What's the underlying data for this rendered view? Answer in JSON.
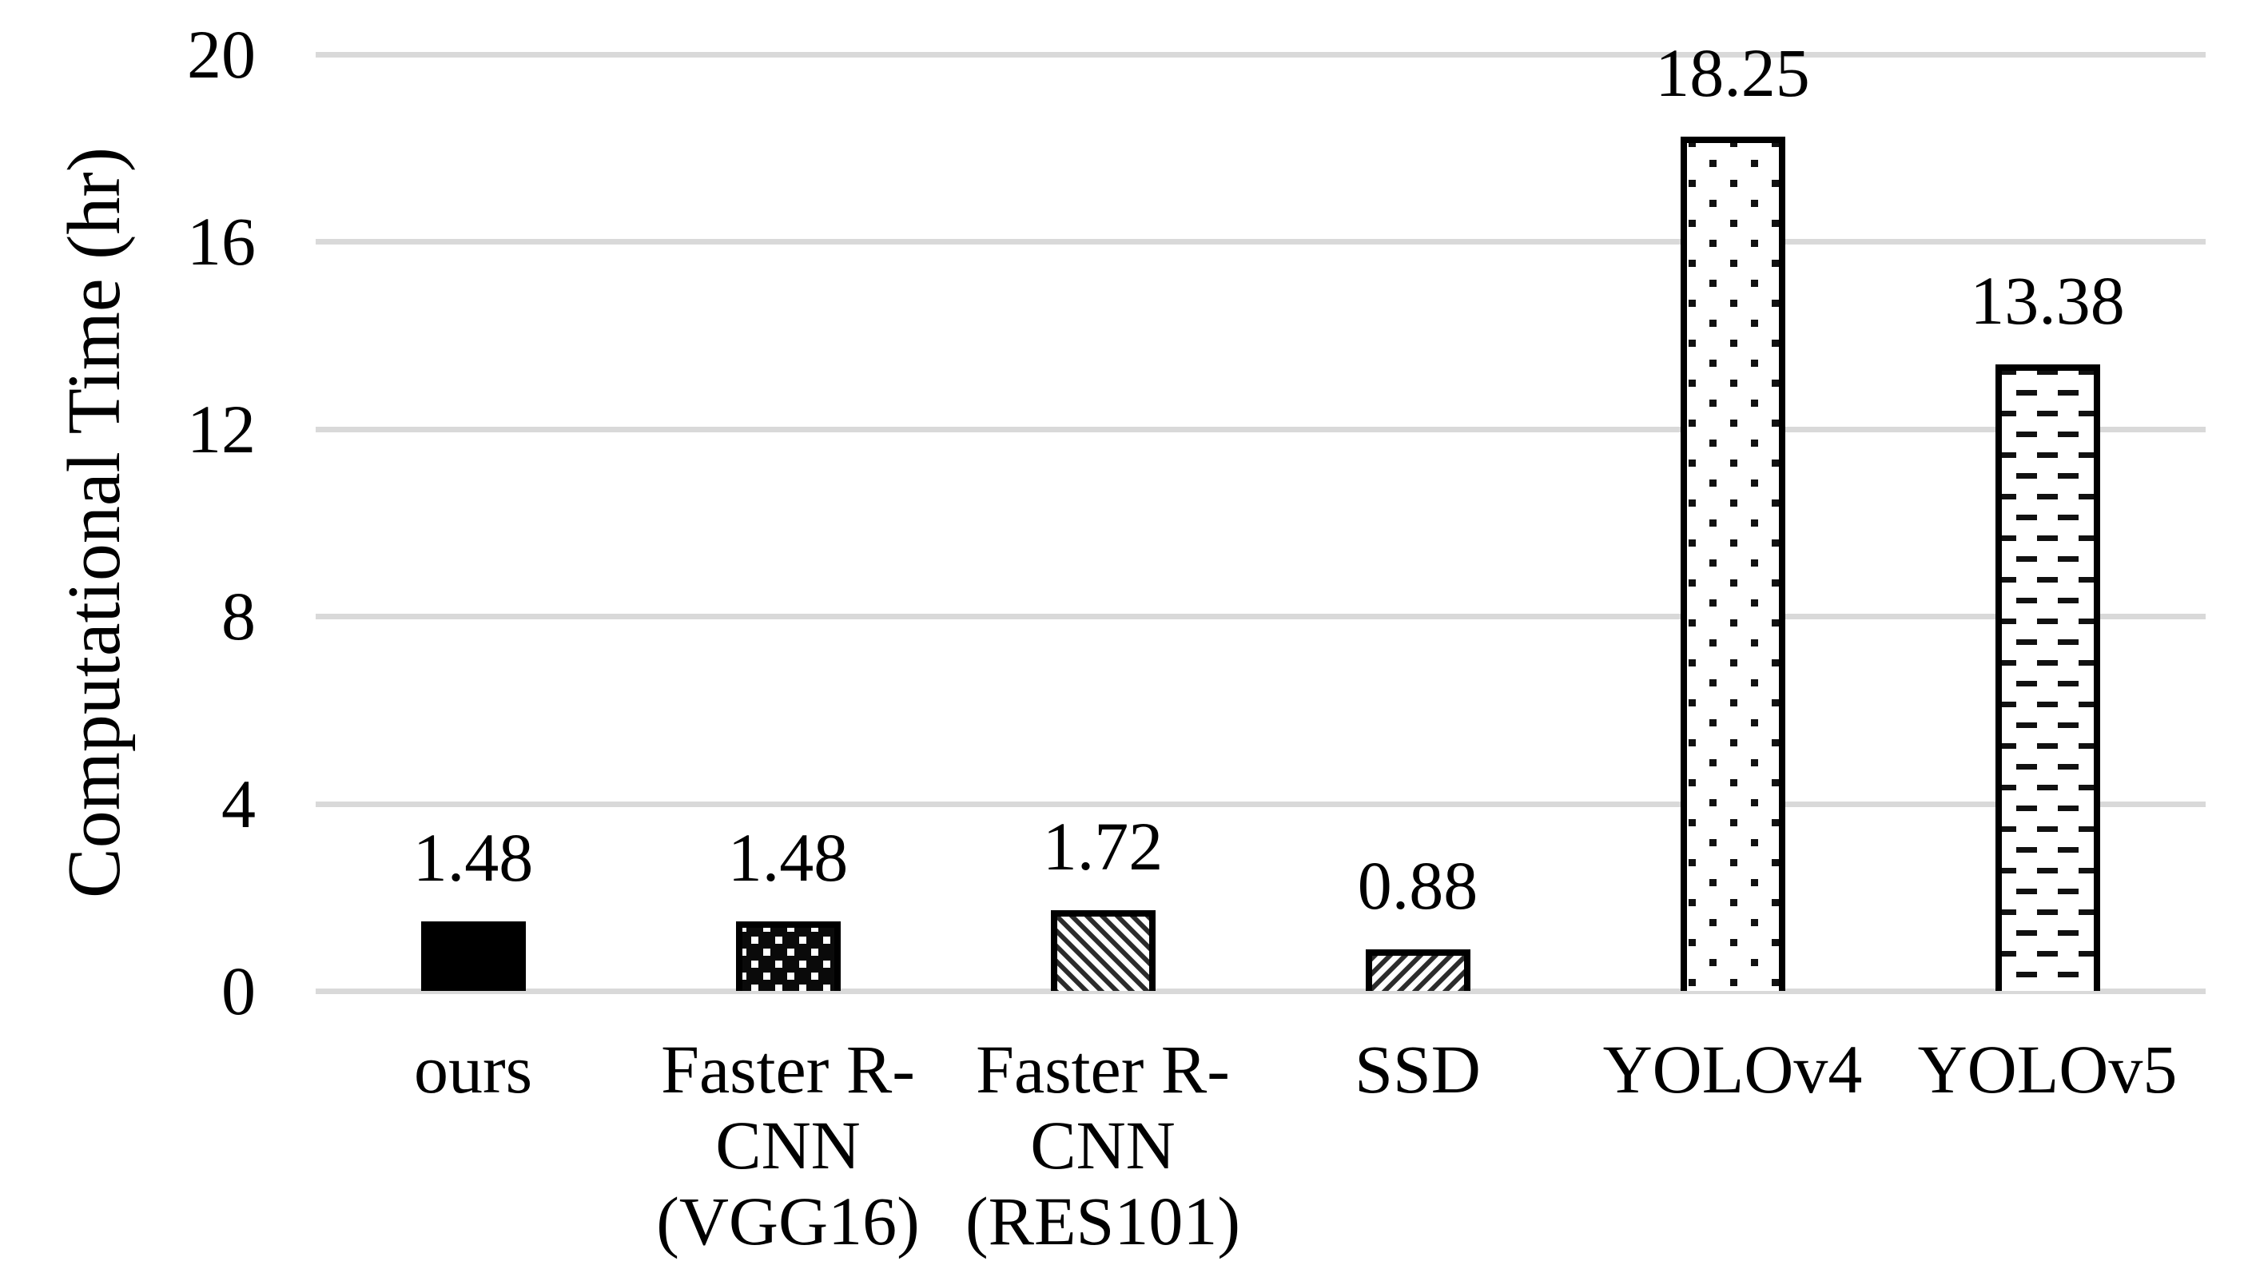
{
  "chart_data": {
    "type": "bar",
    "title": "",
    "xlabel": "",
    "ylabel": "Computational Time (hr)",
    "ylim": [
      0,
      20
    ],
    "yticks": [
      0,
      4,
      8,
      12,
      16,
      20
    ],
    "grid": true,
    "legend": "none",
    "categories": [
      "ours",
      "Faster R-\nCNN\n(VGG16)",
      "Faster R-\nCNN\n(RES101)",
      "SSD",
      "YOLOv4",
      "YOLOv5"
    ],
    "ids": [
      "ours",
      "faster-rcnn-vgg16",
      "faster-rcnn-res101",
      "ssd",
      "yolov4",
      "yolov5"
    ],
    "values": [
      1.48,
      1.48,
      1.72,
      0.88,
      18.25,
      13.38
    ],
    "data_labels": [
      "1.48",
      "1.48",
      "1.72",
      "0.88",
      "18.25",
      "13.38"
    ],
    "bar_patterns": [
      "solid-black",
      "white-dots-on-black",
      "diagonal-stripes-down",
      "diagonal-stripes-up",
      "black-dots-on-white",
      "horizontal-dashes-on-white"
    ],
    "colors": {
      "bar_fill": "#000000",
      "bar_border": "#000000",
      "pattern_dark": "#2b2b2b",
      "pattern_dot": "#111111",
      "gridline": "#d9d9d9",
      "background": "#ffffff",
      "text": "#000000"
    }
  }
}
